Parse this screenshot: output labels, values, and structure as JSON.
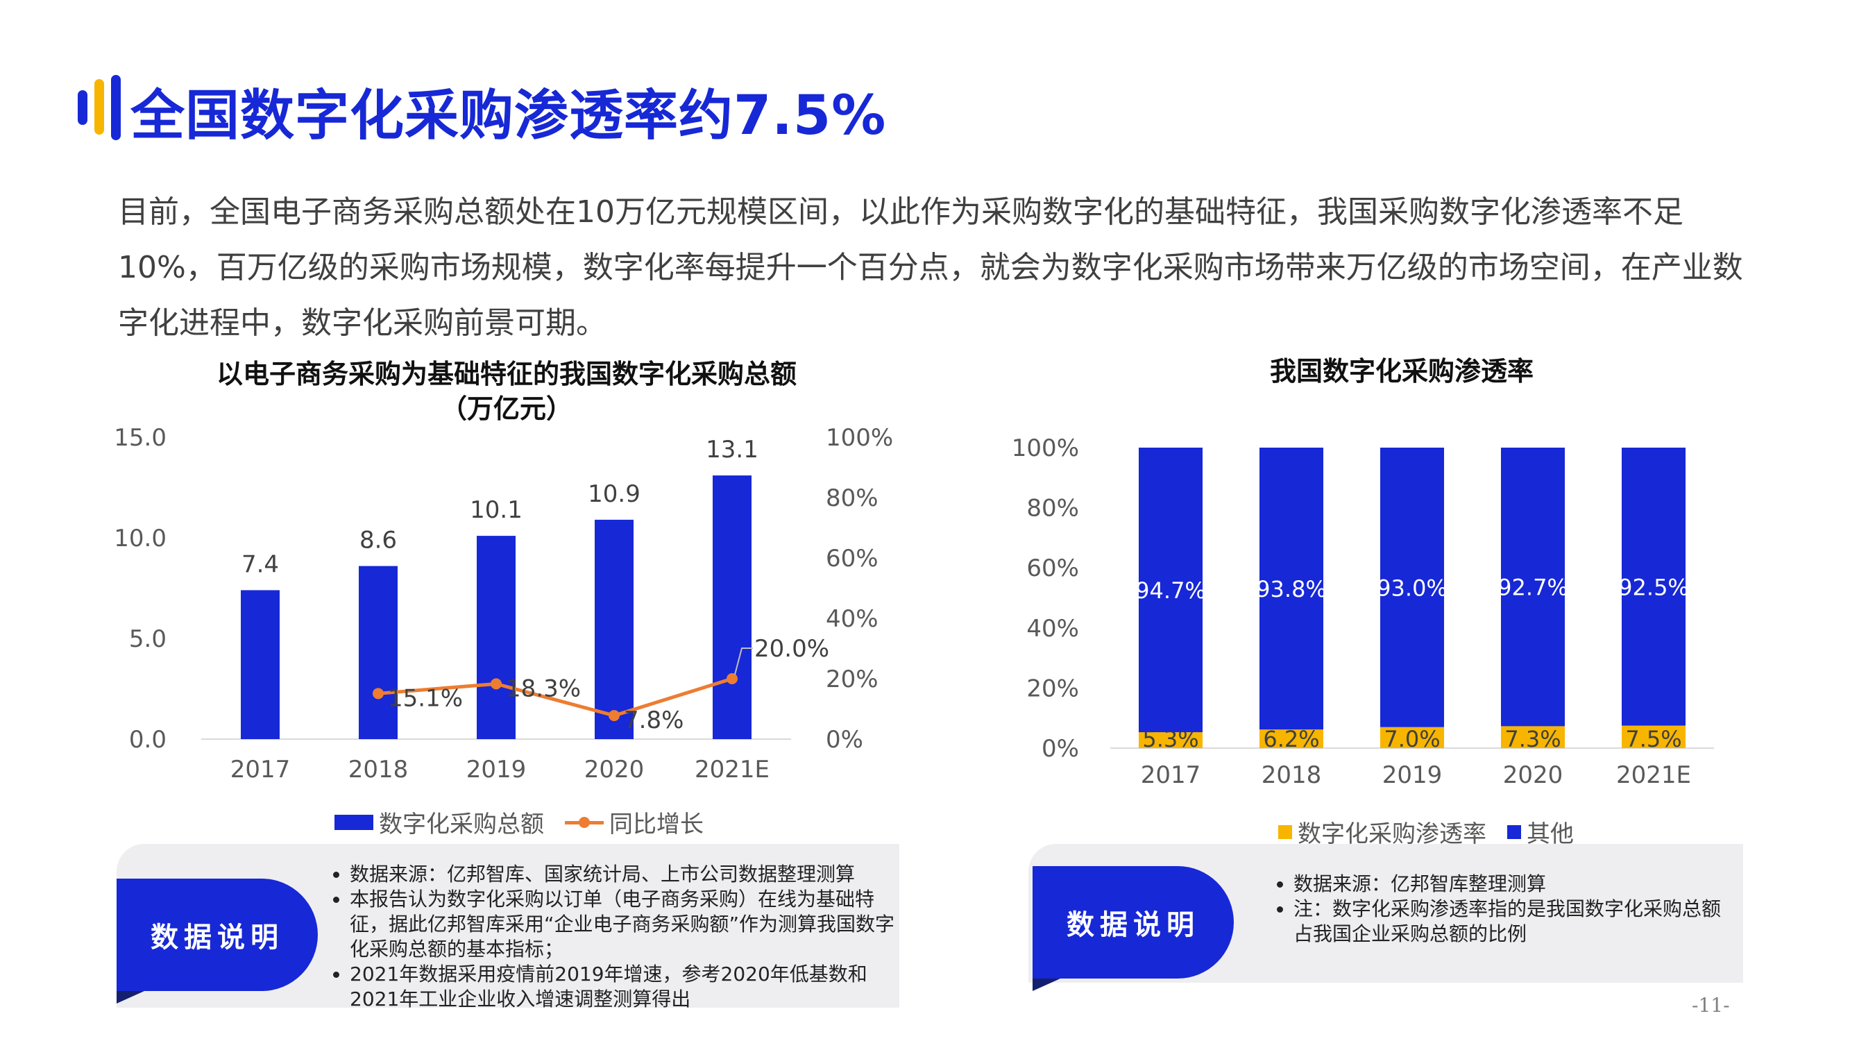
{
  "title": "全国数字化采购渗透率约7.5%",
  "intro": "目前，全国电子商务采购总额处在10万亿元规模区间，以此作为采购数字化的基础特征，我国采购数字化渗透率不足10%，百万亿级的采购市场规模，数字化率每提升一个百分点，就会为数字化采购市场带来万亿级的市场空间，在产业数字化进程中，数字化采购前景可期。",
  "page_number": "-11-",
  "colors": {
    "blue": "#1728d6",
    "orange": "#ed7d31",
    "yellow": "#f7b500"
  },
  "chart_data": [
    {
      "type": "bar",
      "title": "以电子商务采购为基础特征的我国数字化采购总额",
      "subtitle": "（万亿元）",
      "categories": [
        "2017",
        "2018",
        "2019",
        "2020",
        "2021E"
      ],
      "ylim": [
        0,
        15
      ],
      "y_ticks": [
        "0.0",
        "5.0",
        "10.0",
        "15.0"
      ],
      "y2lim": [
        0,
        100
      ],
      "y2_ticks": [
        "0%",
        "20%",
        "40%",
        "60%",
        "80%",
        "100%"
      ],
      "series": [
        {
          "name": "数字化采购总额",
          "type": "bar",
          "axis": "left",
          "values": [
            7.4,
            8.6,
            10.1,
            10.9,
            13.1
          ],
          "labels": [
            "7.4",
            "8.6",
            "10.1",
            "10.9",
            "13.1"
          ]
        },
        {
          "name": "同比增长",
          "type": "line",
          "axis": "right",
          "values": [
            null,
            15.1,
            18.3,
            7.8,
            20.0
          ],
          "labels": [
            "",
            "15.1%",
            "18.3%",
            "7.8%",
            "20.0%"
          ]
        }
      ],
      "legend": "bottom"
    },
    {
      "type": "bar",
      "stacked": true,
      "title": "我国数字化采购渗透率",
      "categories": [
        "2017",
        "2018",
        "2019",
        "2020",
        "2021E"
      ],
      "ylim": [
        0,
        100
      ],
      "y_ticks": [
        "0%",
        "20%",
        "40%",
        "60%",
        "80%",
        "100%"
      ],
      "series": [
        {
          "name": "数字化采购渗透率",
          "values": [
            5.3,
            6.2,
            7.0,
            7.3,
            7.5
          ],
          "labels": [
            "5.3%",
            "6.2%",
            "7.0%",
            "7.3%",
            "7.5%"
          ]
        },
        {
          "name": "其他",
          "values": [
            94.7,
            93.8,
            93.0,
            92.7,
            92.5
          ],
          "labels": [
            "94.7%",
            "93.8%",
            "93.0%",
            "92.7%",
            "92.5%"
          ]
        }
      ],
      "legend": "bottom"
    }
  ],
  "notes_left": {
    "label": "数据说明",
    "items": [
      "数据来源：亿邦智库、国家统计局、上市公司数据整理测算",
      "本报告认为数字化采购以订单（电子商务采购）在线为基础特征，据此亿邦智库采用“企业电子商务采购额”作为测算我国数字化采购总额的基本指标；",
      "2021年数据采用疫情前2019年增速，参考2020年低基数和2021年工业企业收入增速调整测算得出"
    ]
  },
  "notes_right": {
    "label": "数据说明",
    "items": [
      "数据来源：亿邦智库整理测算",
      "注：数字化采购渗透率指的是我国数字化采购总额占我国企业采购总额的比例"
    ]
  }
}
